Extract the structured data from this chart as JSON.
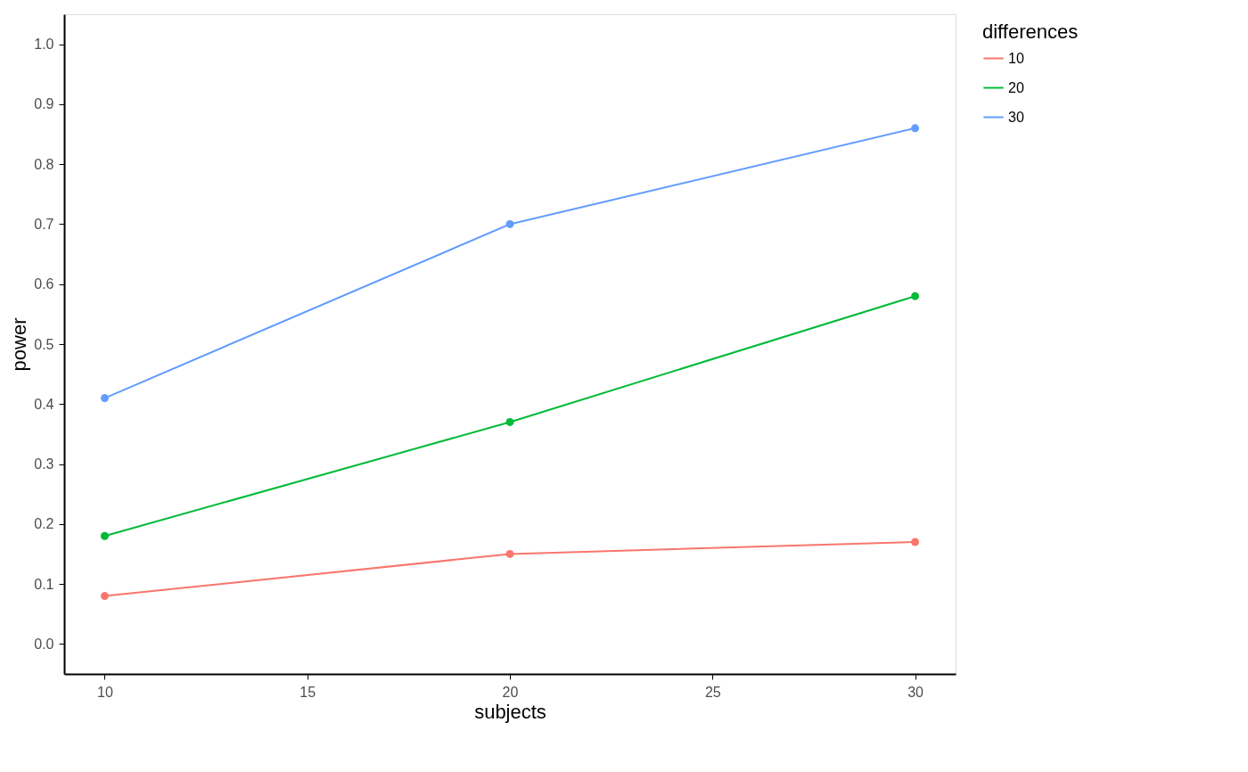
{
  "chart_data": {
    "type": "line",
    "xlabel": "subjects",
    "ylabel": "power",
    "legend_title": "differences",
    "x": [
      10,
      20,
      30
    ],
    "series": [
      {
        "name": "10",
        "color": "#f8766d",
        "values": [
          0.08,
          0.15,
          0.17
        ]
      },
      {
        "name": "20",
        "color": "#00ba38",
        "values": [
          0.18,
          0.37,
          0.58
        ]
      },
      {
        "name": "30",
        "color": "#619cff",
        "values": [
          0.41,
          0.7,
          0.86
        ]
      }
    ],
    "xlim": [
      9,
      31
    ],
    "xticks": [
      10,
      15,
      20,
      25,
      30
    ],
    "ylim": [
      -0.05,
      1.05
    ],
    "yticks": [
      {
        "value": 0,
        "label": "0.0"
      },
      0.1,
      0.2,
      0.3,
      0.4,
      0.5,
      0.6,
      0.7,
      0.8,
      0.9,
      {
        "value": 1,
        "label": "1.0"
      }
    ],
    "grid": false,
    "legend": "right",
    "marker": "circle",
    "line_style": "solid"
  }
}
